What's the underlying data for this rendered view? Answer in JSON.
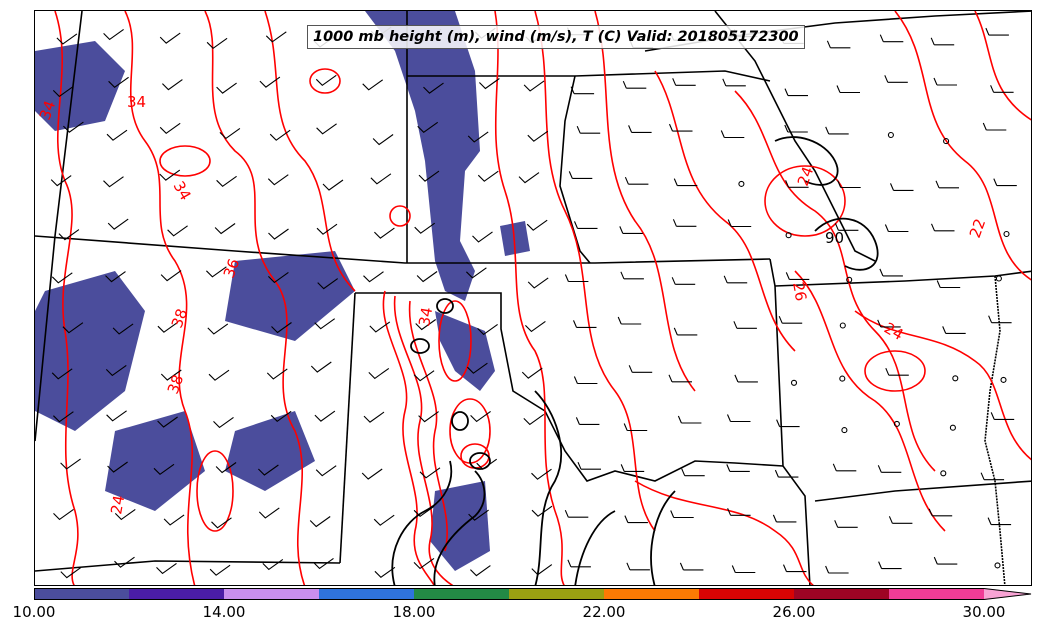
{
  "title": "1000 mb height (m), wind (m/s), T (C) Valid: 201805172300",
  "colors": {
    "temperature_contour": "#ff0000",
    "height_contour": "#000000",
    "shading": "#4b4d9c",
    "boundaries": "#000000"
  },
  "contour_labels": [
    "34",
    "34",
    "34",
    "36",
    "38",
    "38",
    "34",
    "24",
    "26",
    "22",
    "24",
    "90",
    "24"
  ],
  "colorbar": {
    "segments": [
      "#4b4d9c",
      "#4a1da6",
      "#c98fee",
      "#2f73dd",
      "#238a45",
      "#9aa012",
      "#fb7a04",
      "#d80404",
      "#9e0424",
      "#f03c96",
      "#f8a3d4"
    ],
    "tick_labels": [
      "10.00",
      "14.00",
      "18.00",
      "22.00",
      "26.00",
      "30.00"
    ]
  },
  "icons": [
    "wind-barb-icon"
  ]
}
